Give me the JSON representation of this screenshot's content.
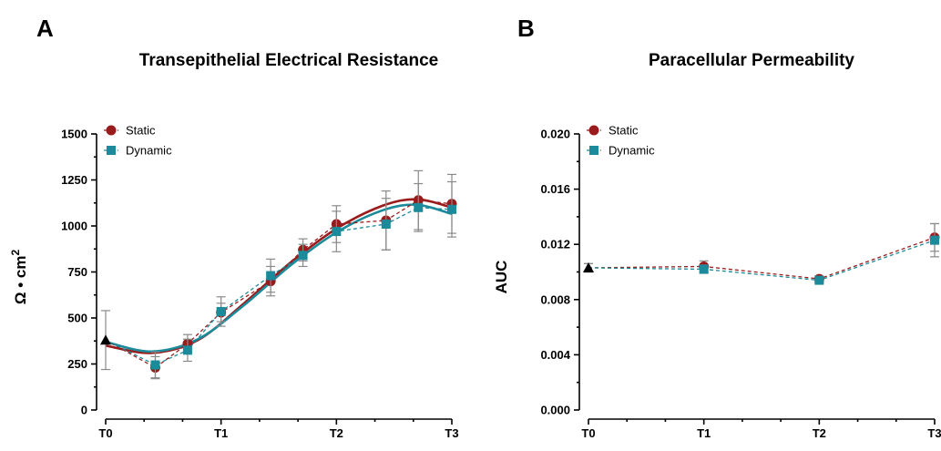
{
  "colors": {
    "static": "#9a1b1b",
    "dynamic": "#1b8a9a",
    "baseline": "#000000",
    "error": "#8a8a8a"
  },
  "chart_data": [
    {
      "panel": "A",
      "type": "line",
      "title": "Transepithelial Electrical Resistance",
      "ylabel": "Ω • cm",
      "ylabel_sup": "2",
      "xlim": [
        0,
        3
      ],
      "ylim": [
        0,
        1500
      ],
      "yticks": [
        0,
        250,
        500,
        750,
        1000,
        1250,
        1500
      ],
      "ytick_labels": [
        "0",
        "250",
        "500",
        "750",
        "1000",
        "1250",
        "1500"
      ],
      "xticks": [
        0,
        1,
        2,
        3
      ],
      "xtick_labels": [
        "T0",
        "T1",
        "T2",
        "T3"
      ],
      "legend": {
        "position": "top-left",
        "entries": [
          "Static",
          "Dynamic"
        ]
      },
      "baseline": {
        "x": 0,
        "y": 380,
        "err": 160,
        "marker": "triangle"
      },
      "series": [
        {
          "name": "Static",
          "marker": "circle",
          "x": [
            0.43,
            0.71,
            1,
            1.43,
            1.71,
            2,
            2.43,
            2.71,
            3
          ],
          "y": [
            230,
            360,
            530,
            700,
            870,
            1010,
            1030,
            1140,
            1120
          ],
          "err": [
            60,
            50,
            50,
            80,
            60,
            100,
            160,
            160,
            160
          ]
        },
        {
          "name": "Dynamic",
          "marker": "square",
          "x": [
            0.43,
            0.71,
            1,
            1.43,
            1.71,
            2,
            2.43,
            2.71,
            3
          ],
          "y": [
            245,
            325,
            535,
            730,
            840,
            970,
            1010,
            1100,
            1090
          ],
          "err": [
            70,
            60,
            80,
            90,
            60,
            110,
            140,
            130,
            150
          ]
        }
      ],
      "fits": [
        {
          "name": "Static",
          "x": [
            0,
            0.4,
            0.8,
            1.2,
            1.6,
            2.0,
            2.4,
            2.7,
            3.0
          ],
          "y": [
            350,
            310,
            380,
            580,
            800,
            985,
            1110,
            1145,
            1100
          ]
        },
        {
          "name": "Dynamic",
          "x": [
            0,
            0.4,
            0.8,
            1.2,
            1.6,
            2.0,
            2.4,
            2.7,
            3.0
          ],
          "y": [
            370,
            318,
            385,
            570,
            785,
            965,
            1085,
            1115,
            1065
          ]
        }
      ]
    },
    {
      "panel": "B",
      "type": "line",
      "title": "Paracellular Permeability",
      "ylabel": "AUC",
      "xlim": [
        0,
        3
      ],
      "ylim": [
        0,
        0.02
      ],
      "yticks": [
        0,
        0.004,
        0.008,
        0.012,
        0.016,
        0.02
      ],
      "ytick_labels": [
        "0.000",
        "0.004",
        "0.008",
        "0.012",
        "0.016",
        "0.020"
      ],
      "xticks": [
        0,
        1,
        2,
        3
      ],
      "xtick_labels": [
        "T0",
        "T1",
        "T2",
        "T3"
      ],
      "legend": {
        "position": "top-left",
        "entries": [
          "Static",
          "Dynamic"
        ]
      },
      "baseline": {
        "x": 0,
        "y": 0.0103,
        "err": 0.0003,
        "marker": "triangle"
      },
      "series": [
        {
          "name": "Static",
          "marker": "circle",
          "x": [
            0,
            1,
            2,
            3
          ],
          "y": [
            0.0103,
            0.0104,
            0.0095,
            0.0125
          ],
          "err": [
            0.0003,
            0.0004,
            0.0002,
            0.001
          ]
        },
        {
          "name": "Dynamic",
          "marker": "square",
          "x": [
            0,
            1,
            2,
            3
          ],
          "y": [
            0.0103,
            0.0102,
            0.0094,
            0.0123
          ],
          "err": [
            0.0003,
            0.0003,
            0.0002,
            0.0012
          ]
        }
      ]
    }
  ]
}
